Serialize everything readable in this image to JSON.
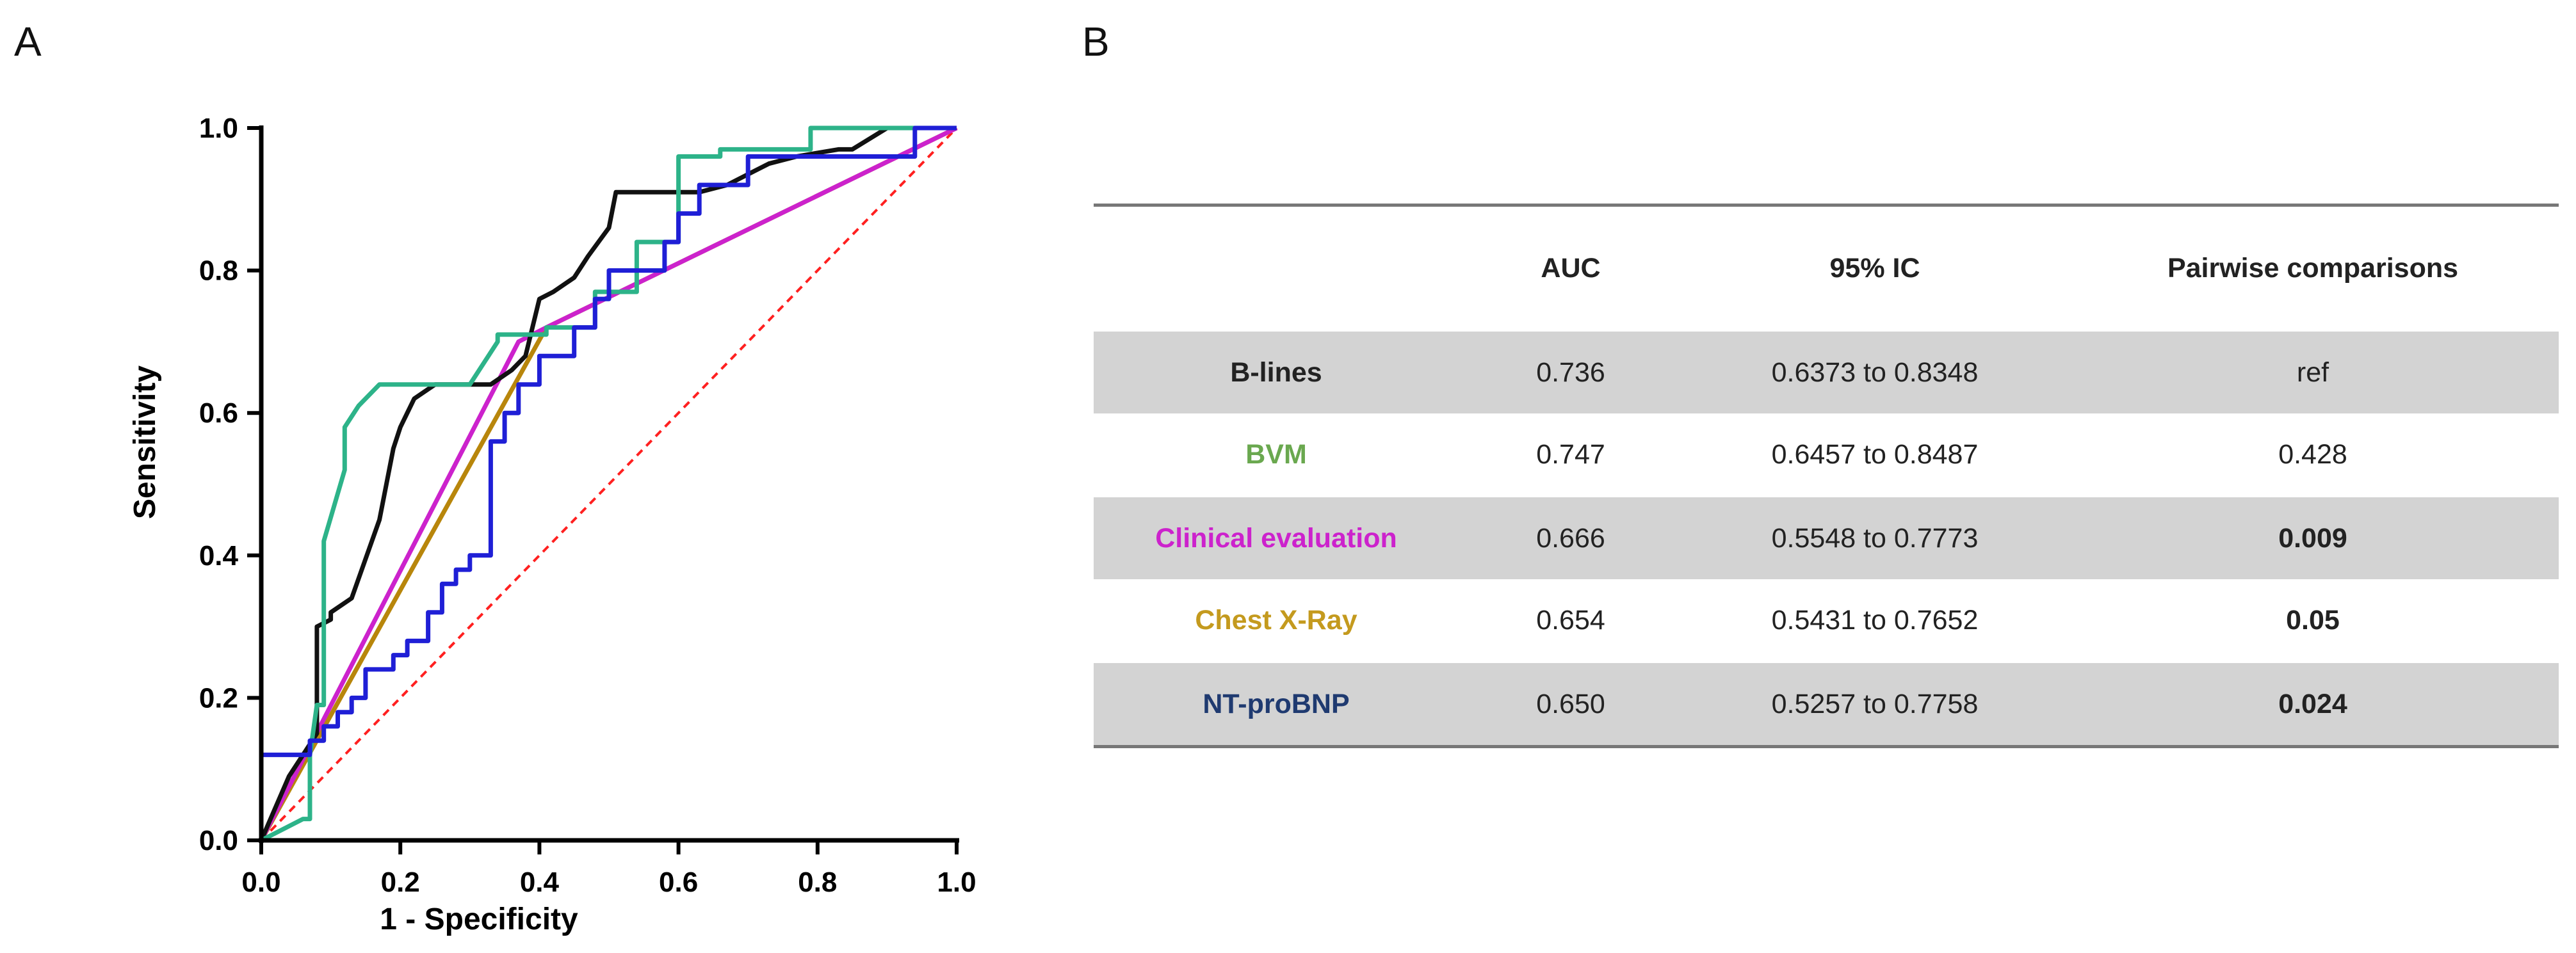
{
  "panels": {
    "a_label": "A",
    "b_label": "B"
  },
  "chart_data": {
    "type": "line",
    "title": "",
    "xlabel": "1 - Specificity",
    "ylabel": "Sensitivity",
    "xlim": [
      0,
      1
    ],
    "ylim": [
      0,
      1
    ],
    "x_ticks": [
      "0.0",
      "0.2",
      "0.4",
      "0.6",
      "0.8",
      "1.0"
    ],
    "y_ticks": [
      "0.0",
      "0.2",
      "0.4",
      "0.6",
      "0.8",
      "1.0"
    ],
    "series": [
      {
        "name": "Reference line",
        "color": "#ff2020",
        "style": "dashed",
        "x": [
          0,
          1
        ],
        "y": [
          0,
          1
        ]
      },
      {
        "name": "Chest X-Ray",
        "color": "#b8860b",
        "x": [
          0,
          0.41,
          1
        ],
        "y": [
          0,
          0.72,
          1
        ]
      },
      {
        "name": "Clinical evaluation",
        "color": "#cc22cc",
        "x": [
          0,
          0.37,
          0.41,
          1
        ],
        "y": [
          0,
          0.7,
          0.72,
          1
        ]
      },
      {
        "name": "B-lines",
        "color": "#111111",
        "x": [
          0,
          0.04,
          0.06,
          0.08,
          0.08,
          0.1,
          0.1,
          0.13,
          0.17,
          0.19,
          0.2,
          0.22,
          0.25,
          0.33,
          0.36,
          0.38,
          0.4,
          0.42,
          0.45,
          0.47,
          0.5,
          0.51,
          0.56,
          0.59,
          0.63,
          0.67,
          0.71,
          0.73,
          0.77,
          0.83,
          0.85,
          0.9,
          0.95,
          1.0
        ],
        "y": [
          0,
          0.09,
          0.12,
          0.15,
          0.3,
          0.31,
          0.32,
          0.34,
          0.45,
          0.55,
          0.58,
          0.62,
          0.64,
          0.64,
          0.66,
          0.68,
          0.76,
          0.77,
          0.79,
          0.82,
          0.86,
          0.91,
          0.91,
          0.91,
          0.91,
          0.92,
          0.94,
          0.95,
          0.96,
          0.97,
          0.97,
          1.0,
          1.0,
          1.0
        ]
      },
      {
        "name": "BVM",
        "color": "#2db389",
        "x": [
          0,
          0.06,
          0.07,
          0.07,
          0.08,
          0.09,
          0.09,
          0.12,
          0.12,
          0.14,
          0.17,
          0.17,
          0.3,
          0.34,
          0.34,
          0.41,
          0.41,
          0.48,
          0.48,
          0.54,
          0.54,
          0.6,
          0.6,
          0.66,
          0.66,
          0.79,
          0.79,
          1.0
        ],
        "y": [
          0,
          0.03,
          0.03,
          0.12,
          0.19,
          0.19,
          0.42,
          0.52,
          0.58,
          0.61,
          0.64,
          0.64,
          0.64,
          0.7,
          0.71,
          0.71,
          0.72,
          0.72,
          0.77,
          0.77,
          0.84,
          0.84,
          0.96,
          0.96,
          0.97,
          0.97,
          1.0,
          1.0
        ]
      },
      {
        "name": "NT-proBNP",
        "color": "#1f1fd6",
        "x": [
          0,
          0,
          0.07,
          0.07,
          0.09,
          0.09,
          0.11,
          0.11,
          0.13,
          0.13,
          0.15,
          0.15,
          0.19,
          0.19,
          0.21,
          0.21,
          0.24,
          0.24,
          0.26,
          0.26,
          0.28,
          0.28,
          0.3,
          0.3,
          0.33,
          0.33,
          0.35,
          0.35,
          0.37,
          0.37,
          0.4,
          0.4,
          0.45,
          0.45,
          0.48,
          0.48,
          0.5,
          0.5,
          0.58,
          0.58,
          0.6,
          0.6,
          0.63,
          0.63,
          0.7,
          0.7,
          0.94,
          0.94,
          1.0
        ],
        "y": [
          0,
          0.12,
          0.12,
          0.14,
          0.14,
          0.16,
          0.16,
          0.18,
          0.18,
          0.2,
          0.2,
          0.24,
          0.24,
          0.26,
          0.26,
          0.28,
          0.28,
          0.32,
          0.32,
          0.36,
          0.36,
          0.38,
          0.38,
          0.4,
          0.4,
          0.56,
          0.56,
          0.6,
          0.6,
          0.64,
          0.64,
          0.68,
          0.68,
          0.72,
          0.72,
          0.76,
          0.76,
          0.8,
          0.8,
          0.84,
          0.84,
          0.88,
          0.88,
          0.92,
          0.92,
          0.96,
          0.96,
          1.0,
          1.0
        ]
      }
    ]
  },
  "table": {
    "headers": [
      "",
      "AUC",
      "95% IC",
      "Pairwise comparisons"
    ],
    "rows": [
      {
        "label": "B-lines",
        "label_color": "#222222",
        "auc": "0.736",
        "ci": "0.6373 to 0.8348",
        "pairwise": "ref",
        "pairwise_bold": false
      },
      {
        "label": "BVM",
        "label_color": "#6aa84f",
        "auc": "0.747",
        "ci": "0.6457 to 0.8487",
        "pairwise": "0.428",
        "pairwise_bold": false
      },
      {
        "label": "Clinical evaluation",
        "label_color": "#cc22cc",
        "auc": "0.666",
        "ci": "0.5548 to 0.7773",
        "pairwise": "0.009",
        "pairwise_bold": true
      },
      {
        "label": "Chest X-Ray",
        "label_color": "#c49a1e",
        "auc": "0.654",
        "ci": "0.5431 to 0.7652",
        "pairwise": "0.05",
        "pairwise_bold": true
      },
      {
        "label": "NT-proBNP",
        "label_color": "#1f3a70",
        "auc": "0.650",
        "ci": "0.5257 to 0.7758",
        "pairwise": "0.024",
        "pairwise_bold": true
      }
    ]
  }
}
